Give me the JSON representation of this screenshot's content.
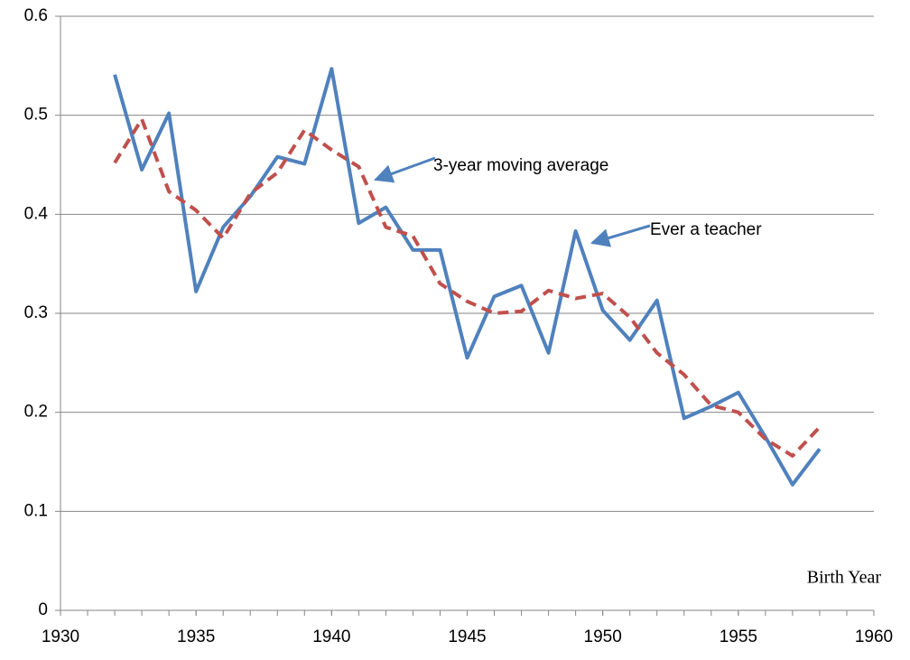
{
  "chart_data": {
    "type": "line",
    "x": [
      1932,
      1933,
      1934,
      1935,
      1936,
      1937,
      1938,
      1939,
      1940,
      1941,
      1942,
      1943,
      1944,
      1945,
      1946,
      1947,
      1948,
      1949,
      1950,
      1951,
      1952,
      1953,
      1954,
      1955,
      1956,
      1957,
      1958
    ],
    "series": [
      {
        "name": "Ever a teacher",
        "color": "#4f81bd",
        "dashed": false,
        "values": [
          0.541,
          0.445,
          0.502,
          0.322,
          0.387,
          0.418,
          0.458,
          0.451,
          0.547,
          0.391,
          0.407,
          0.364,
          0.364,
          0.255,
          0.317,
          0.328,
          0.26,
          0.383,
          0.303,
          0.273,
          0.313,
          0.194,
          0.206,
          0.22,
          0.175,
          0.127,
          0.163
        ]
      },
      {
        "name": "3-year moving average",
        "color": "#c0504d",
        "dashed": true,
        "values": [
          0.452,
          0.496,
          0.423,
          0.404,
          0.376,
          0.421,
          0.442,
          0.485,
          0.465,
          0.448,
          0.387,
          0.378,
          0.33,
          0.312,
          0.3,
          0.302,
          0.323,
          0.315,
          0.32,
          0.296,
          0.26,
          0.238,
          0.207,
          0.2,
          0.173,
          0.156,
          0.185
        ]
      }
    ],
    "x_label": "Birth Year",
    "xlim": [
      1930,
      1960
    ],
    "xticks": [
      1930,
      1935,
      1940,
      1945,
      1950,
      1955,
      1960
    ],
    "ylim": [
      0,
      0.6
    ],
    "yticks": [
      0,
      0.1,
      0.2,
      0.3,
      0.4,
      0.5,
      0.6
    ],
    "grid": true
  }
}
